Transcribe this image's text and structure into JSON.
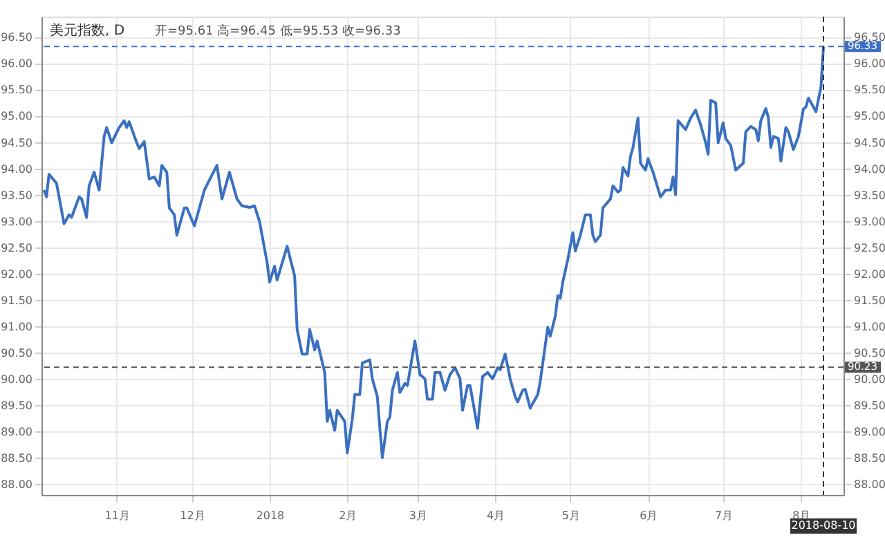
{
  "chart_data": {
    "type": "line",
    "title": "美元指数, D",
    "subtitle": "开=95.61  高=96.45  低=95.53  收=96.33",
    "x": [
      "2017-10-03",
      "2017-10-04",
      "2017-10-05",
      "2017-10-08",
      "2017-10-11",
      "2017-10-13",
      "2017-10-14",
      "2017-10-17",
      "2017-10-18",
      "2017-10-20",
      "2017-10-21",
      "2017-10-23",
      "2017-10-25",
      "2017-10-27",
      "2017-10-28",
      "2017-10-30",
      "2017-11-02",
      "2017-11-04",
      "2017-11-05",
      "2017-11-06",
      "2017-11-09",
      "2017-11-10",
      "2017-11-12",
      "2017-11-14",
      "2017-11-16",
      "2017-11-18",
      "2017-11-19",
      "2017-11-21",
      "2017-11-22",
      "2017-11-24",
      "2017-11-25",
      "2017-11-28",
      "2017-11-29",
      "2017-12-02",
      "2017-12-06",
      "2017-12-11",
      "2017-12-13",
      "2017-12-16",
      "2017-12-19",
      "2017-12-21",
      "2017-12-24",
      "2017-12-26",
      "2017-12-28",
      "2017-12-31",
      "2018-01-01",
      "2018-01-03",
      "2018-01-04",
      "2018-01-08",
      "2018-01-11",
      "2018-01-12",
      "2018-01-14",
      "2018-01-16",
      "2018-01-17",
      "2018-01-19",
      "2018-01-20",
      "2018-01-23",
      "2018-01-24",
      "2018-01-25",
      "2018-01-27",
      "2018-01-28",
      "2018-01-31",
      "2018-02-01",
      "2018-02-03",
      "2018-02-04",
      "2018-02-06",
      "2018-02-07",
      "2018-02-10",
      "2018-02-11",
      "2018-02-13",
      "2018-02-14",
      "2018-02-15",
      "2018-02-17",
      "2018-02-18",
      "2018-02-19",
      "2018-02-21",
      "2018-02-22",
      "2018-02-24",
      "2018-02-25",
      "2018-02-28",
      "2018-03-02",
      "2018-03-04",
      "2018-03-05",
      "2018-03-07",
      "2018-03-08",
      "2018-03-10",
      "2018-03-12",
      "2018-03-14",
      "2018-03-16",
      "2018-03-18",
      "2018-03-19",
      "2018-03-21",
      "2018-03-22",
      "2018-03-25",
      "2018-03-27",
      "2018-03-29",
      "2018-03-31",
      "2018-04-02",
      "2018-04-03",
      "2018-04-05",
      "2018-04-07",
      "2018-04-09",
      "2018-04-10",
      "2018-04-12",
      "2018-04-13",
      "2018-04-15",
      "2018-04-16",
      "2018-04-18",
      "2018-04-19",
      "2018-04-22",
      "2018-04-23",
      "2018-04-25",
      "2018-04-26",
      "2018-04-27",
      "2018-04-28",
      "2018-04-30",
      "2018-05-02",
      "2018-05-03",
      "2018-05-05",
      "2018-05-07",
      "2018-05-09",
      "2018-05-10",
      "2018-05-11",
      "2018-05-13",
      "2018-05-14",
      "2018-05-17",
      "2018-05-18",
      "2018-05-20",
      "2018-05-21",
      "2018-05-22",
      "2018-05-24",
      "2018-05-25",
      "2018-05-26",
      "2018-05-28",
      "2018-05-29",
      "2018-05-31",
      "2018-06-01",
      "2018-06-03",
      "2018-06-06",
      "2018-06-08",
      "2018-06-10",
      "2018-06-11",
      "2018-06-12",
      "2018-06-13",
      "2018-06-16",
      "2018-06-18",
      "2018-06-20",
      "2018-06-22",
      "2018-06-24",
      "2018-06-25",
      "2018-06-26",
      "2018-06-28",
      "2018-06-29",
      "2018-07-01",
      "2018-07-02",
      "2018-07-04",
      "2018-07-06",
      "2018-07-08",
      "2018-07-09",
      "2018-07-10",
      "2018-07-12",
      "2018-07-14",
      "2018-07-15",
      "2018-07-16",
      "2018-07-18",
      "2018-07-19",
      "2018-07-20",
      "2018-07-21",
      "2018-07-23",
      "2018-07-24",
      "2018-07-26",
      "2018-07-27",
      "2018-07-29",
      "2018-07-31",
      "2018-08-02",
      "2018-08-03",
      "2018-08-04",
      "2018-08-06",
      "2018-08-07",
      "2018-08-09",
      "2018-08-10"
    ],
    "series": [
      {
        "color": "#3a70c0",
        "values": [
          93.6,
          93.47,
          93.9,
          93.73,
          92.96,
          93.13,
          93.08,
          93.47,
          93.43,
          93.08,
          93.68,
          93.94,
          93.6,
          94.62,
          94.79,
          94.5,
          94.79,
          94.92,
          94.79,
          94.9,
          94.5,
          94.39,
          94.52,
          93.81,
          93.85,
          93.68,
          94.07,
          93.94,
          93.26,
          93.13,
          92.74,
          93.26,
          93.26,
          92.92,
          93.6,
          94.07,
          93.43,
          93.94,
          93.43,
          93.3,
          93.27,
          93.3,
          93.0,
          92.23,
          91.85,
          92.15,
          91.89,
          92.53,
          91.97,
          90.95,
          90.48,
          90.48,
          90.95,
          90.56,
          90.73,
          90.13,
          89.2,
          89.41,
          89.03,
          89.41,
          89.2,
          88.6,
          89.24,
          89.71,
          89.71,
          90.31,
          90.37,
          90.01,
          89.67,
          89.07,
          88.51,
          89.2,
          89.28,
          89.79,
          90.13,
          89.75,
          89.92,
          89.88,
          90.73,
          90.09,
          90.01,
          89.62,
          89.62,
          90.13,
          90.13,
          89.79,
          90.09,
          90.22,
          90.01,
          89.41,
          89.88,
          89.88,
          89.07,
          90.05,
          90.13,
          90.01,
          90.22,
          90.18,
          90.48,
          90.01,
          89.67,
          89.57,
          89.79,
          89.81,
          89.45,
          89.54,
          89.71,
          89.96,
          90.99,
          90.82,
          91.2,
          91.59,
          91.54,
          91.85,
          92.28,
          92.79,
          92.44,
          92.74,
          93.13,
          93.13,
          92.74,
          92.62,
          92.74,
          93.26,
          93.43,
          93.68,
          93.56,
          93.6,
          94.03,
          93.87,
          94.24,
          94.41,
          94.97,
          94.11,
          93.98,
          94.2,
          93.94,
          93.47,
          93.6,
          93.6,
          93.85,
          93.51,
          94.92,
          94.75,
          94.97,
          95.12,
          94.84,
          94.5,
          94.28,
          95.31,
          95.26,
          94.5,
          94.88,
          94.58,
          94.45,
          93.98,
          94.07,
          94.11,
          94.71,
          94.81,
          94.75,
          94.54,
          94.92,
          95.15,
          94.98,
          94.41,
          94.62,
          94.58,
          94.15,
          94.79,
          94.71,
          94.37,
          94.62,
          95.14,
          95.18,
          95.35,
          95.18,
          95.09,
          95.56,
          96.33
        ]
      }
    ],
    "xlim": [
      "2017-10-02",
      "2018-08-18"
    ],
    "xticks": [
      {
        "value": "2017-11-01",
        "label": "11月"
      },
      {
        "value": "2017-12-01",
        "label": "12月"
      },
      {
        "value": "2018-01-01",
        "label": "2018"
      },
      {
        "value": "2018-02-01",
        "label": "2月"
      },
      {
        "value": "2018-03-01",
        "label": "3月"
      },
      {
        "value": "2018-04-01",
        "label": "4月"
      },
      {
        "value": "2018-05-01",
        "label": "5月"
      },
      {
        "value": "2018-06-01",
        "label": "6月"
      },
      {
        "value": "2018-07-01",
        "label": "7月"
      },
      {
        "value": "2018-08-01",
        "label": "8月"
      }
    ],
    "ylim": [
      87.8,
      96.9
    ],
    "yticks": [
      {
        "value": 88,
        "label": "88.00"
      },
      {
        "value": 88.5,
        "label": "88.50"
      },
      {
        "value": 89,
        "label": "89.00"
      },
      {
        "value": 89.5,
        "label": "89.50"
      },
      {
        "value": 90,
        "label": "90.00"
      },
      {
        "value": 90.5,
        "label": "90.50"
      },
      {
        "value": 91,
        "label": "91.00"
      },
      {
        "value": 91.5,
        "label": "91.50"
      },
      {
        "value": 92,
        "label": "92.00"
      },
      {
        "value": 92.5,
        "label": "92.50"
      },
      {
        "value": 93,
        "label": "93.00"
      },
      {
        "value": 93.5,
        "label": "93.50"
      },
      {
        "value": 94,
        "label": "94.00"
      },
      {
        "value": 94.5,
        "label": "94.50"
      },
      {
        "value": 95,
        "label": "95.00"
      },
      {
        "value": 95.5,
        "label": "95.50"
      },
      {
        "value": 96,
        "label": "96.00"
      },
      {
        "value": 96.5,
        "label": "96.50"
      }
    ],
    "y2lim": [
      87.8,
      96.9
    ],
    "y2ticks": [
      {
        "value": 88,
        "label": "88.00"
      },
      {
        "value": 88.5,
        "label": "88.50"
      },
      {
        "value": 89,
        "label": "89.00"
      },
      {
        "value": 89.5,
        "label": "89.50"
      },
      {
        "value": 90,
        "label": "90.00"
      },
      {
        "value": 90.5,
        "label": "90.50"
      },
      {
        "value": 91,
        "label": "91.00"
      },
      {
        "value": 91.5,
        "label": "91.50"
      },
      {
        "value": 92,
        "label": "92.00"
      },
      {
        "value": 92.5,
        "label": "92.50"
      },
      {
        "value": 93,
        "label": "93.00"
      },
      {
        "value": 93.5,
        "label": "93.50"
      },
      {
        "value": 94,
        "label": "94.00"
      },
      {
        "value": 94.5,
        "label": "94.50"
      },
      {
        "value": 95,
        "label": "95.00"
      },
      {
        "value": 95.5,
        "label": "95.50"
      },
      {
        "value": 96,
        "label": "96.00"
      },
      {
        "value": 96.5,
        "label": "96.50"
      }
    ],
    "ref_lines": [
      {
        "axis": "y",
        "value": 96.33,
        "label": "96.33",
        "color": "#3d6fc6",
        "line_style": "dashed"
      },
      {
        "axis": "y",
        "value": 90.23,
        "label": "90.23",
        "color": "#555555",
        "line_style": "dashed"
      },
      {
        "axis": "x",
        "value": "2018-08-10",
        "label": "2018-08-10",
        "color": "#333333",
        "line_style": "dashed"
      }
    ],
    "grid": true,
    "marker": "none",
    "line_style": "solid"
  }
}
